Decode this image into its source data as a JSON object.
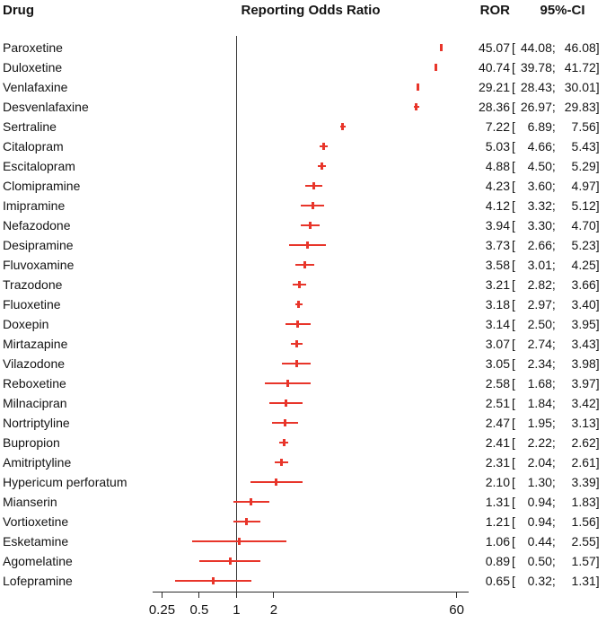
{
  "headers": {
    "drug": "Drug",
    "plot": "Reporting Odds Ratio",
    "ror": "ROR",
    "ci": "95%-CI"
  },
  "chart_data": {
    "type": "scatter",
    "subtype": "forest-plot",
    "title": "Reporting Odds Ratio",
    "xlabel": "",
    "ylabel": "Drug",
    "x_scale": "log",
    "x_ticks": [
      "0.25",
      "0.5",
      "1",
      "2",
      "60"
    ],
    "reference_line": 1,
    "axis_range": [
      0.21,
      75
    ],
    "grid": "off",
    "legend_position": "none",
    "marker_color": "#e8352a",
    "ci_format": {
      "open": "[",
      "sep": ";",
      "close": "]"
    },
    "rows": [
      {
        "drug": "Paroxetine",
        "ror": "45.07",
        "low": "44.08",
        "high": "46.08"
      },
      {
        "drug": "Duloxetine",
        "ror": "40.74",
        "low": "39.78",
        "high": "41.72"
      },
      {
        "drug": "Venlafaxine",
        "ror": "29.21",
        "low": "28.43",
        "high": "30.01"
      },
      {
        "drug": "Desvenlafaxine",
        "ror": "28.36",
        "low": "26.97",
        "high": "29.83"
      },
      {
        "drug": "Sertraline",
        "ror": "7.22",
        "low": "6.89",
        "high": "7.56"
      },
      {
        "drug": "Citalopram",
        "ror": "5.03",
        "low": "4.66",
        "high": "5.43"
      },
      {
        "drug": "Escitalopram",
        "ror": "4.88",
        "low": "4.50",
        "high": "5.29"
      },
      {
        "drug": "Clomipramine",
        "ror": "4.23",
        "low": "3.60",
        "high": "4.97"
      },
      {
        "drug": "Imipramine",
        "ror": "4.12",
        "low": "3.32",
        "high": "5.12"
      },
      {
        "drug": "Nefazodone",
        "ror": "3.94",
        "low": "3.30",
        "high": "4.70"
      },
      {
        "drug": "Desipramine",
        "ror": "3.73",
        "low": "2.66",
        "high": "5.23"
      },
      {
        "drug": "Fluvoxamine",
        "ror": "3.58",
        "low": "3.01",
        "high": "4.25"
      },
      {
        "drug": "Trazodone",
        "ror": "3.21",
        "low": "2.82",
        "high": "3.66"
      },
      {
        "drug": "Fluoxetine",
        "ror": "3.18",
        "low": "2.97",
        "high": "3.40"
      },
      {
        "drug": "Doxepin",
        "ror": "3.14",
        "low": "2.50",
        "high": "3.95"
      },
      {
        "drug": "Mirtazapine",
        "ror": "3.07",
        "low": "2.74",
        "high": "3.43"
      },
      {
        "drug": "Vilazodone",
        "ror": "3.05",
        "low": "2.34",
        "high": "3.98"
      },
      {
        "drug": "Reboxetine",
        "ror": "2.58",
        "low": "1.68",
        "high": "3.97"
      },
      {
        "drug": "Milnacipran",
        "ror": "2.51",
        "low": "1.84",
        "high": "3.42"
      },
      {
        "drug": "Nortriptyline",
        "ror": "2.47",
        "low": "1.95",
        "high": "3.13"
      },
      {
        "drug": "Bupropion",
        "ror": "2.41",
        "low": "2.22",
        "high": "2.62"
      },
      {
        "drug": "Amitriptyline",
        "ror": "2.31",
        "low": "2.04",
        "high": "2.61"
      },
      {
        "drug": "Hypericum perforatum",
        "ror": "2.10",
        "low": "1.30",
        "high": "3.39"
      },
      {
        "drug": "Mianserin",
        "ror": "1.31",
        "low": "0.94",
        "high": "1.83"
      },
      {
        "drug": "Vortioxetine",
        "ror": "1.21",
        "low": "0.94",
        "high": "1.56"
      },
      {
        "drug": "Esketamine",
        "ror": "1.06",
        "low": "0.44",
        "high": "2.55"
      },
      {
        "drug": "Agomelatine",
        "ror": "0.89",
        "low": "0.50",
        "high": "1.57"
      },
      {
        "drug": "Lofepramine",
        "ror": "0.65",
        "low": "0.32",
        "high": "1.31"
      }
    ]
  }
}
